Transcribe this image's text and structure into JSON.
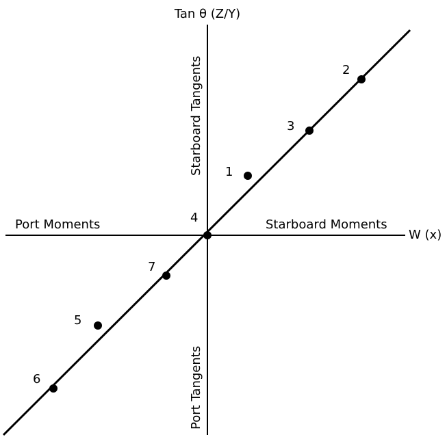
{
  "axes": {
    "y_title": "Tan θ (Z/Y)",
    "x_title": "W (x)",
    "left_label": "Port Moments",
    "right_label": "Starboard Moments",
    "top_label": "Starboard Tangents",
    "bottom_label": "Port Tangents"
  },
  "points": [
    {
      "label": "1"
    },
    {
      "label": "2"
    },
    {
      "label": "3"
    },
    {
      "label": "4"
    },
    {
      "label": "5"
    },
    {
      "label": "6"
    },
    {
      "label": "7"
    }
  ],
  "colors": {
    "ink": "#000000",
    "background": "#ffffff"
  }
}
